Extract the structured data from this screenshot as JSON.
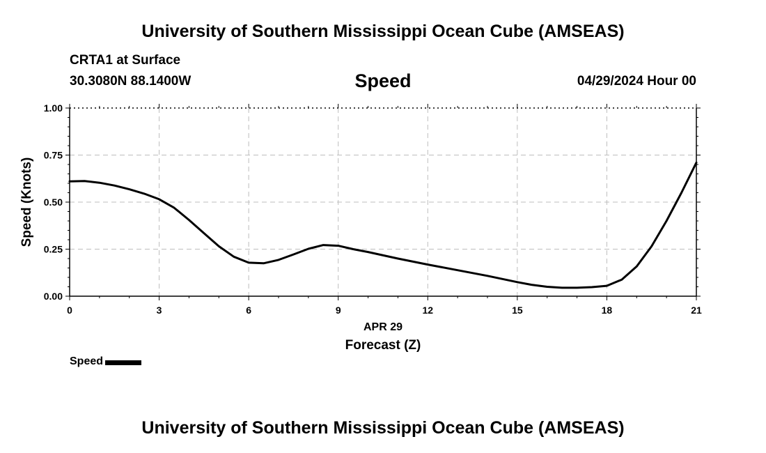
{
  "header": {
    "title": "University of Southern Mississippi Ocean Cube (AMSEAS)",
    "station": "CRTA1 at Surface",
    "coords": "30.3080N  88.1400W",
    "variable": "Speed",
    "datetime": "04/29/2024 Hour 00"
  },
  "footer": {
    "title": "University of Southern Mississippi Ocean Cube (AMSEAS)"
  },
  "legend": {
    "label": "Speed"
  },
  "chart_data": {
    "type": "line",
    "title": "Speed",
    "xlabel": "Forecast (Z)",
    "xlabel_date": "APR 29",
    "ylabel": "Speed (Knots)",
    "xlim": [
      0,
      21
    ],
    "ylim": [
      0,
      1
    ],
    "xticks": [
      0,
      3,
      6,
      9,
      12,
      15,
      18,
      21
    ],
    "xtick_labels": [
      "0",
      "3",
      "6",
      "9",
      "12",
      "15",
      "18",
      "21"
    ],
    "yticks": [
      0,
      0.25,
      0.5,
      0.75,
      1.0
    ],
    "ytick_labels": [
      "0.00",
      "0.25",
      "0.50",
      "0.75",
      "1.00"
    ],
    "grid": true,
    "legend_position": "bottom-left",
    "series": [
      {
        "name": "Speed",
        "color": "#000000",
        "x": [
          0,
          0.5,
          1,
          1.5,
          2,
          2.5,
          3,
          3.5,
          4,
          4.5,
          5,
          5.5,
          6,
          6.5,
          7,
          7.5,
          8,
          8.5,
          9,
          9.5,
          10,
          11,
          12,
          13,
          14,
          15,
          15.5,
          16,
          16.5,
          17,
          17.5,
          18,
          18.5,
          19,
          19.5,
          20,
          20.5,
          21
        ],
        "y": [
          0.61,
          0.612,
          0.603,
          0.588,
          0.568,
          0.545,
          0.515,
          0.47,
          0.405,
          0.335,
          0.265,
          0.21,
          0.178,
          0.175,
          0.193,
          0.222,
          0.252,
          0.272,
          0.268,
          0.25,
          0.235,
          0.2,
          0.168,
          0.138,
          0.108,
          0.075,
          0.06,
          0.05,
          0.045,
          0.045,
          0.048,
          0.055,
          0.088,
          0.158,
          0.265,
          0.4,
          0.55,
          0.71
        ]
      }
    ]
  }
}
